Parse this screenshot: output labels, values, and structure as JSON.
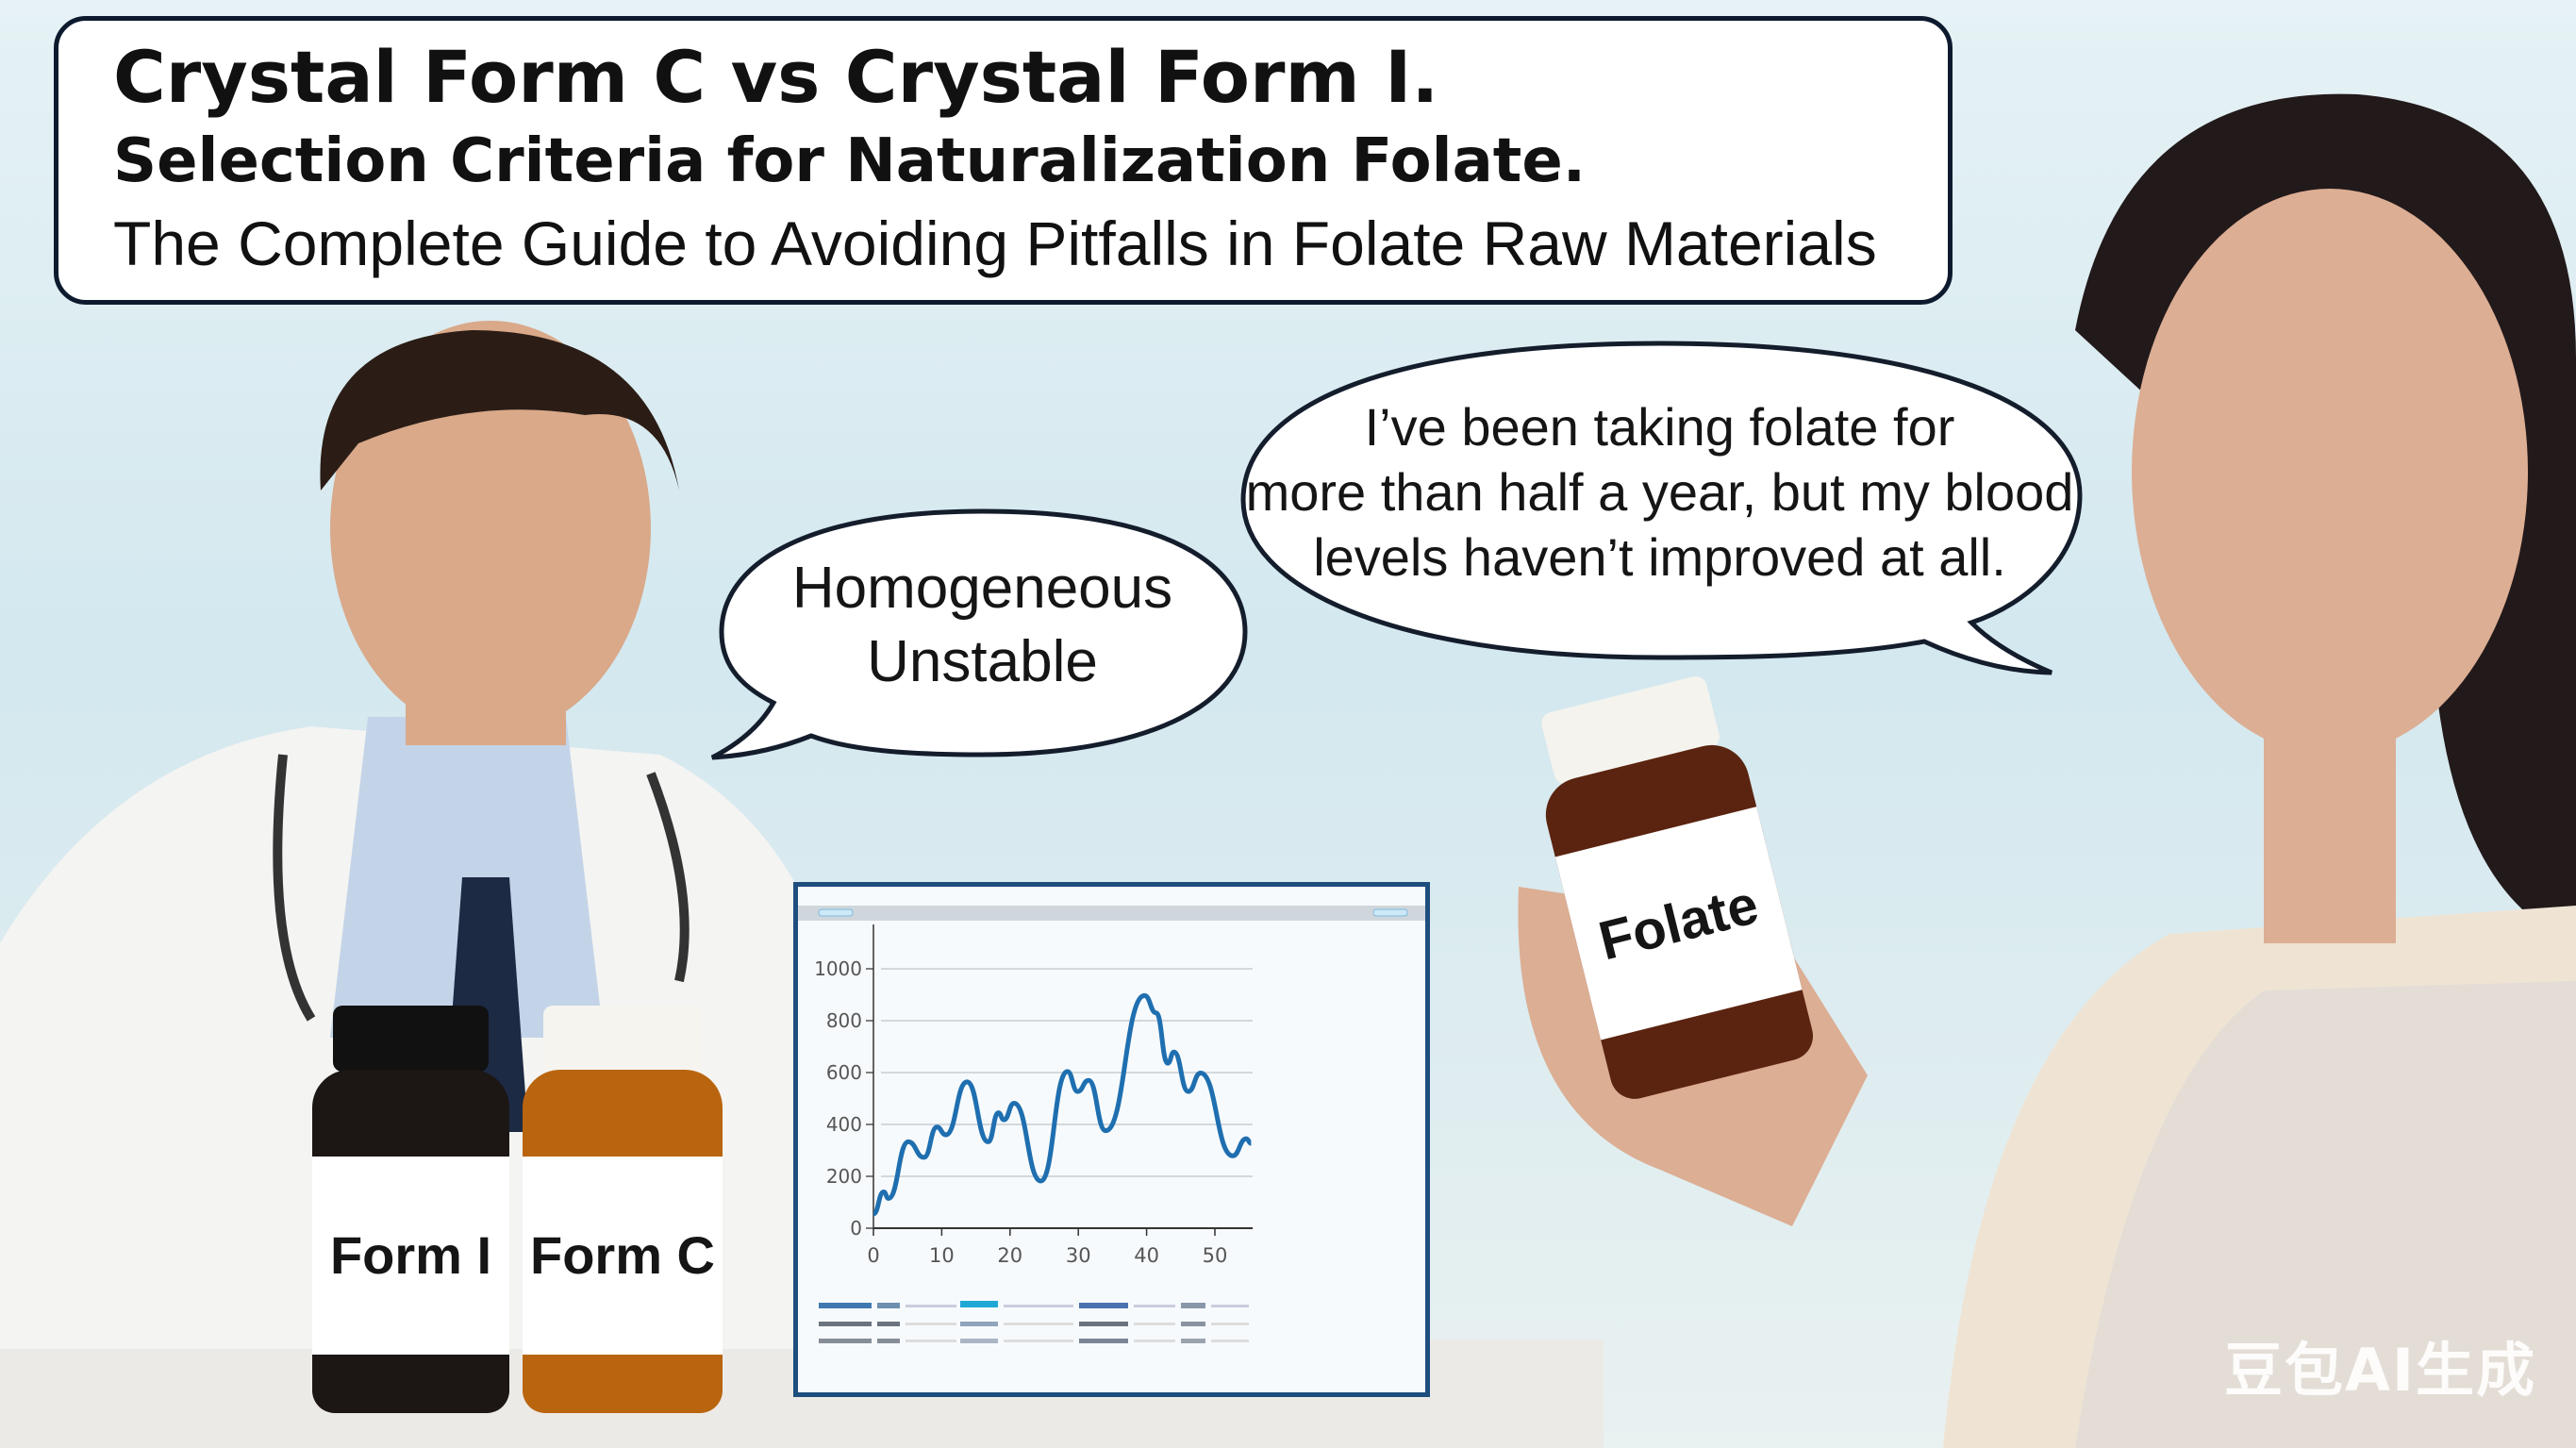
{
  "title": {
    "line1": "Crystal Form C vs Crystal Form I.",
    "line2": "Selection Criteria for Naturalization Folate.",
    "line3": "The Complete Guide to Avoiding Pitfalls in Folate Raw Materials"
  },
  "doctor_bubble": {
    "line1": "Homogeneous",
    "line2": "Unstable"
  },
  "patient_bubble": {
    "line1": "I’ve been taking folate for",
    "line2": "more than half a year, but my blood",
    "line3": "levels haven’t improved at all."
  },
  "bottles": {
    "form_i": "Form I",
    "form_c": "Form C",
    "folate": "Folate"
  },
  "chart_data": {
    "type": "line",
    "title": "",
    "xlabel": "",
    "ylabel": "",
    "xlim": [
      0,
      55
    ],
    "ylim": [
      0,
      1000
    ],
    "x_ticks": [
      "0",
      "10",
      "20",
      "30",
      "40",
      "50"
    ],
    "y_ticks": [
      "0",
      "200",
      "400",
      "600",
      "800",
      "1000"
    ],
    "grid": "horizontal",
    "line_color": "#1f6fb0",
    "x": [
      0,
      1.5,
      2.2,
      5.1,
      7.4,
      9.3,
      10.6,
      13.7,
      16.8,
      18.3,
      19.1,
      20.6,
      24.5,
      28.4,
      29.9,
      31.5,
      34,
      39.7,
      41.4,
      43.1,
      44,
      46.1,
      47.9,
      52.6,
      54.6,
      55.3
    ],
    "y": [
      55,
      140,
      115,
      333,
      273,
      390,
      360,
      564,
      333,
      445,
      418,
      482,
      182,
      604,
      527,
      570,
      376,
      897,
      830,
      636,
      679,
      527,
      598,
      279,
      345,
      327
    ]
  },
  "watermark": "豆包AI生成",
  "colors": {
    "background": "#d3e8ef",
    "title_border": "#0d1a2e",
    "chart_frame": "#1d4e7e",
    "chart_line": "#1f6fb0",
    "amber_bottle": "#b9650f",
    "dark_bottle": "#1c1714"
  }
}
